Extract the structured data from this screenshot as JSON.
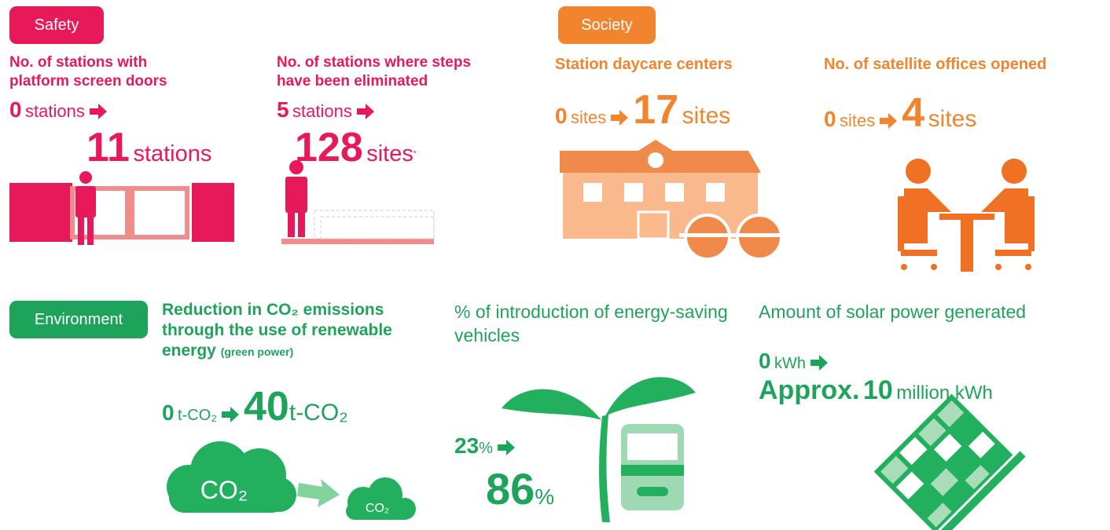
{
  "safety": {
    "label": "Safety",
    "items": [
      {
        "title": "No. of stations with platform screen doors",
        "from_value": 0,
        "from_unit": "stations",
        "to_value": 11,
        "to_unit": "stations"
      },
      {
        "title": "No. of stations where steps have been eliminated",
        "from_value": 5,
        "from_unit": "stations",
        "to_value": 128,
        "to_unit": "sites",
        "note": "*"
      }
    ]
  },
  "society": {
    "label": "Society",
    "items": [
      {
        "title": "Station daycare centers",
        "from_value": 0,
        "from_unit": "sites",
        "to_value": 17,
        "to_unit": "sites"
      },
      {
        "title": "No. of satellite offices opened",
        "from_value": 0,
        "from_unit": "sites",
        "to_value": 4,
        "to_unit": "sites"
      }
    ]
  },
  "environment": {
    "label": "Environment",
    "items": [
      {
        "title": "Reduction in CO₂ emissions through the use of renewable energy",
        "title_note": "(green power)",
        "from_value": 0,
        "from_unit": "t-CO₂",
        "to_value": 40,
        "to_unit": "t-CO₂",
        "cloud_labels": [
          "CO₂",
          "CO₂"
        ]
      },
      {
        "title": "% of introduction of energy-saving vehicles",
        "from_value": 23,
        "from_unit": "%",
        "to_value": 86,
        "to_unit": "%"
      },
      {
        "title": "Amount of solar power generated",
        "from_value": 0,
        "from_unit": "kWh",
        "to_prefix": "Approx.",
        "to_value": 10,
        "to_unit": "million kWh"
      }
    ]
  }
}
